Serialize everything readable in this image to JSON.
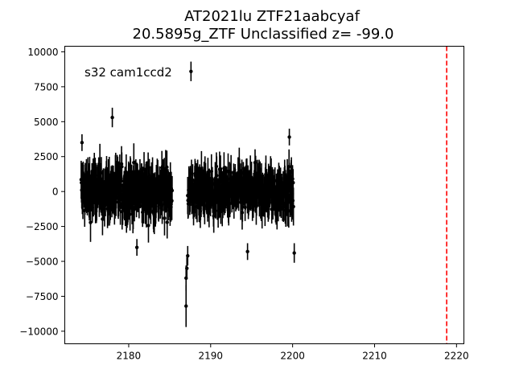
{
  "chart_data": {
    "type": "scatter",
    "title": "AT2021lu  ZTF21aabcyaf",
    "subtitle": "20.5895g_ZTF Unclassified z= -99.0",
    "annotation": "s32 cam1ccd2",
    "xlabel": "",
    "ylabel": "",
    "xlim": [
      2172.2,
      2220.9
    ],
    "ylim": [
      -10900,
      10400
    ],
    "x_ticks": [
      2180,
      2190,
      2200,
      2210,
      2220
    ],
    "y_ticks": [
      -10000,
      -7500,
      -5000,
      -2500,
      0,
      2500,
      5000,
      7500,
      10000
    ],
    "x_tick_labels": [
      "2180",
      "2190",
      "2200",
      "2210",
      "2220"
    ],
    "y_tick_labels": [
      "−10000",
      "−7500",
      "−5000",
      "−2500",
      "0",
      "2500",
      "5000",
      "7500",
      "10000"
    ],
    "grid": false,
    "marker_color": "#000000",
    "vline": {
      "x": 2218.8,
      "color": "#ff0000",
      "style": "dashed"
    },
    "segments": [
      {
        "x_start": 2174.2,
        "x_end": 2185.3,
        "center": 0,
        "spread": 2200,
        "err": 1200
      },
      {
        "x_start": 2187.2,
        "x_end": 2200.1,
        "center": 0,
        "spread": 2000,
        "err": 1100
      }
    ],
    "outliers": [
      {
        "x": 2178.0,
        "y": 5300,
        "err": 700
      },
      {
        "x": 2187.6,
        "y": 8600,
        "err": 700
      },
      {
        "x": 2187.0,
        "y": -8200,
        "err": 1500
      },
      {
        "x": 2187.0,
        "y": -6200,
        "err": 900
      },
      {
        "x": 2187.1,
        "y": -5500,
        "err": 800
      },
      {
        "x": 2187.2,
        "y": -4600,
        "err": 700
      },
      {
        "x": 2199.6,
        "y": 3900,
        "err": 600
      },
      {
        "x": 2174.3,
        "y": 3500,
        "err": 600
      },
      {
        "x": 2200.2,
        "y": -4400,
        "err": 700
      },
      {
        "x": 2194.5,
        "y": -4300,
        "err": 600
      },
      {
        "x": 2181.0,
        "y": -4000,
        "err": 600
      }
    ]
  }
}
